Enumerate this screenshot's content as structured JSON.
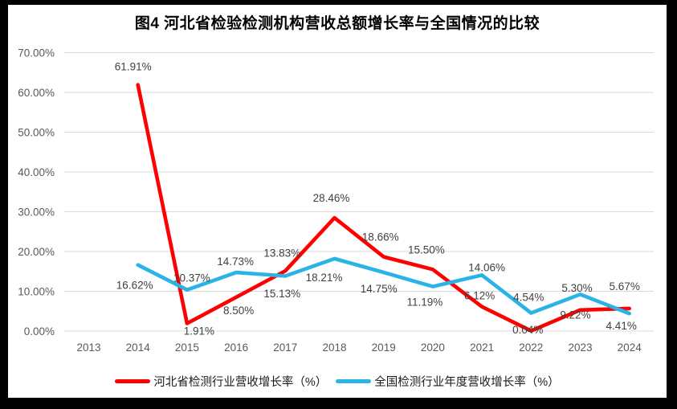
{
  "title": "图4 河北省检验检测机构营收总额增长率与全国情况的比较",
  "chart_data": {
    "type": "line",
    "title": "图4 河北省检验检测机构营收总额增长率与全国情况的比较",
    "categories": [
      "2013",
      "2014",
      "2015",
      "2016",
      "2017",
      "2018",
      "2019",
      "2020",
      "2021",
      "2022",
      "2023",
      "2024"
    ],
    "y_ticks": [
      "0.00%",
      "10.00%",
      "20.00%",
      "30.00%",
      "40.00%",
      "50.00%",
      "60.00%",
      "70.00%"
    ],
    "ylim": [
      0,
      70
    ],
    "grid": true,
    "legend_position": "bottom",
    "series": [
      {
        "name": "河北省检测行业营收增长率（%）",
        "color": "#fe0000",
        "values": [
          null,
          61.91,
          1.91,
          8.5,
          15.13,
          28.46,
          18.66,
          15.5,
          6.12,
          0.04,
          5.3,
          5.67
        ],
        "labels": [
          null,
          "61.91%",
          "1.91%",
          "8.50%",
          "15.13%",
          "28.46%",
          "18.66%",
          "15.50%",
          "6.12%",
          "0.04%",
          "5.30%",
          "5.67%"
        ]
      },
      {
        "name": "全国检测行业年度营收增长率（%）",
        "color": "#29b3e6",
        "values": [
          null,
          16.62,
          10.37,
          14.73,
          13.83,
          18.21,
          14.75,
          11.19,
          14.06,
          4.54,
          9.22,
          4.41
        ],
        "labels": [
          null,
          "16.62%",
          "10.37%",
          "14.73%",
          "13.83%",
          "18.21%",
          "14.75%",
          "11.19%",
          "14.06%",
          "4.54%",
          "9.22%",
          "4.41%"
        ]
      }
    ],
    "colors": {
      "gridline": "#d9d9d9",
      "tick_label": "#595959",
      "data_label": "#404040",
      "frame": "#000000"
    }
  }
}
